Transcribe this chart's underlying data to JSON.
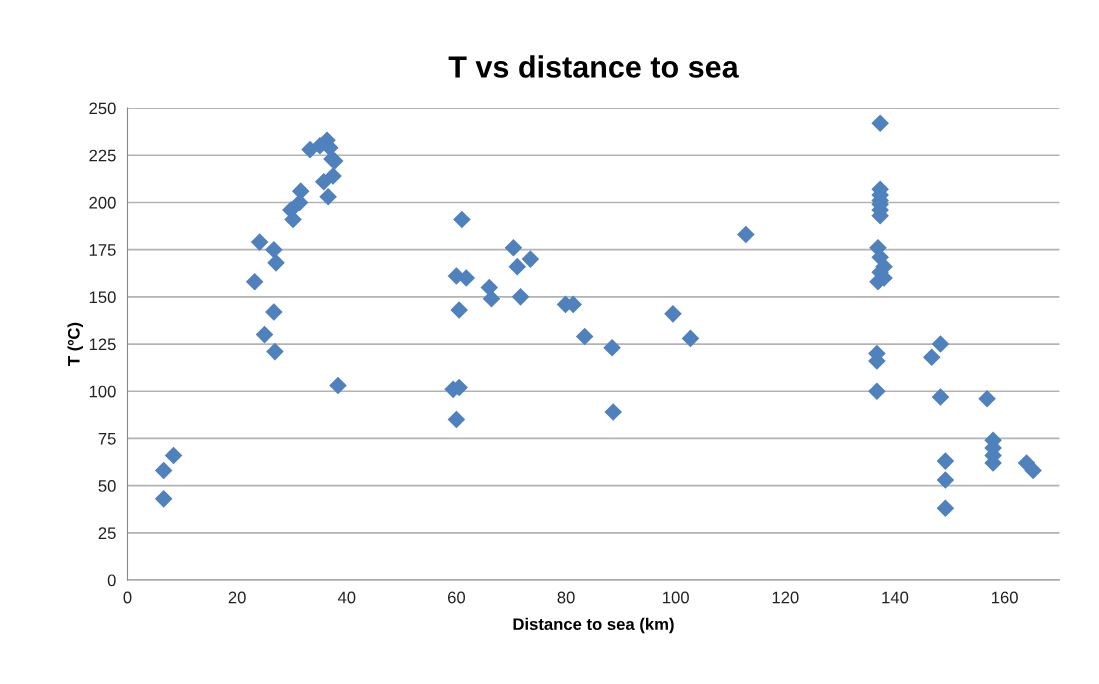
{
  "chart_data": {
    "type": "scatter",
    "title": "T vs distance to sea",
    "xlabel": "Distance to sea (km)",
    "ylabel": "T (ºC)",
    "xlim": [
      0,
      170
    ],
    "xticks": [
      0,
      20,
      40,
      60,
      80,
      100,
      120,
      140,
      160
    ],
    "ylim": [
      0,
      250
    ],
    "yticks": [
      0,
      25,
      50,
      75,
      100,
      125,
      150,
      175,
      200,
      225,
      250
    ],
    "grid": "y",
    "marker": "diamond",
    "series": [
      {
        "color": "#4f81bd",
        "x": [
          6.6,
          6.6,
          8.4,
          24.1,
          26.7,
          27.1,
          23.2,
          26.7,
          25.0,
          26.9,
          38.4,
          30.2,
          29.8,
          31.4,
          31.6,
          33.3,
          35.1,
          36.4,
          36.9,
          37.3,
          37.8,
          35.8,
          37.5,
          36.6,
          61.0,
          60.0,
          61.8,
          60.5,
          59.4,
          60.5,
          60.0,
          70.4,
          71.1,
          73.5,
          66.0,
          66.4,
          71.7,
          79.9,
          81.3,
          83.4,
          88.4,
          88.6,
          99.5,
          102.7,
          112.8,
          137.3,
          137.3,
          137.3,
          137.3,
          137.3,
          137.3,
          137.3,
          136.9,
          137.3,
          138.0,
          137.3,
          136.9,
          138.0,
          136.7,
          136.7,
          136.7,
          148.3,
          146.7,
          148.3,
          149.2,
          149.2,
          149.2,
          156.8,
          157.9,
          157.9,
          157.9,
          157.9,
          164.0,
          165.2
        ],
        "values": [
          43,
          58,
          66,
          179,
          175,
          168,
          158,
          142,
          130,
          121,
          103,
          191,
          196,
          200,
          206,
          228,
          230,
          233,
          229,
          223,
          222,
          211,
          214,
          203,
          191,
          161,
          160,
          143,
          101,
          102,
          85,
          176,
          166,
          170,
          155,
          149,
          150,
          146,
          146,
          129,
          123,
          89,
          141,
          128,
          183,
          242,
          193,
          196,
          199,
          201,
          204,
          207,
          176,
          171,
          166,
          163,
          158,
          160,
          120,
          116,
          100,
          125,
          118,
          97,
          63,
          53,
          38,
          96,
          74,
          70,
          66,
          62,
          62,
          58
        ]
      }
    ]
  }
}
